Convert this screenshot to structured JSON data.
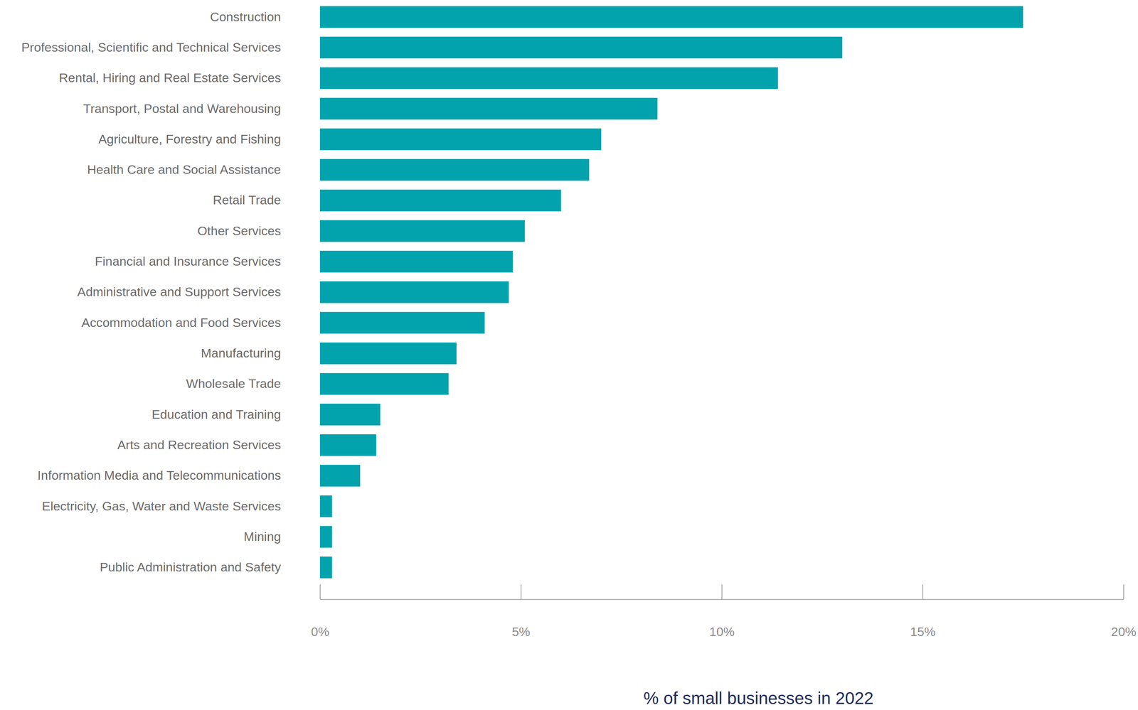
{
  "chart_data": {
    "type": "bar",
    "orientation": "horizontal",
    "grid": false,
    "color": "#02a3ad",
    "x_label": "% of small businesses in 2022",
    "categories": [
      "Construction",
      "Professional, Scientific and Technical Services",
      "Rental, Hiring and Real Estate Services",
      "Transport, Postal and Warehousing",
      "Agriculture, Forestry and Fishing",
      "Health Care and Social Assistance",
      "Retail Trade",
      "Other Services",
      "Financial and Insurance Services",
      "Administrative and Support Services",
      "Accommodation and Food Services",
      "Manufacturing",
      "Wholesale Trade",
      "Education and Training",
      "Arts and Recreation Services",
      "Information Media and Telecommunications",
      "Electricity, Gas, Water and Waste Services",
      "Mining",
      "Public Administration and Safety"
    ],
    "values": [
      17.5,
      13.0,
      11.4,
      8.4,
      7.0,
      6.7,
      6.0,
      5.1,
      4.8,
      4.7,
      4.1,
      3.4,
      3.2,
      1.5,
      1.4,
      1.0,
      0.3,
      0.3,
      0.3
    ],
    "xlim": [
      0,
      20
    ],
    "xticks": [
      {
        "value": 0,
        "label": "0%"
      },
      {
        "value": 5,
        "label": "5%"
      },
      {
        "value": 10,
        "label": "10%"
      },
      {
        "value": 15,
        "label": "15%"
      },
      {
        "value": 20,
        "label": "20%"
      }
    ]
  }
}
